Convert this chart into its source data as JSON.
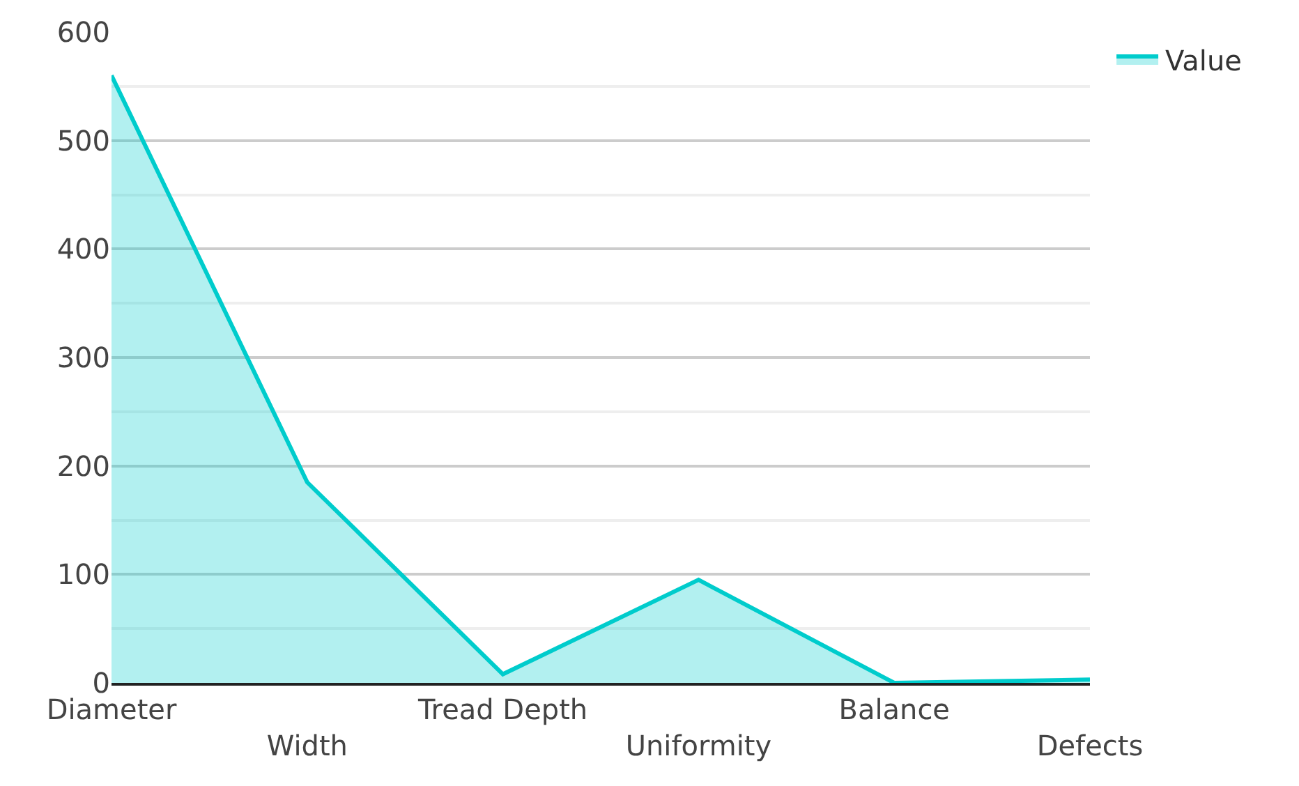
{
  "chart_data": {
    "type": "area",
    "categories": [
      "Diameter",
      "Width",
      "Tread Depth",
      "Uniformity",
      "Balance",
      "Defects"
    ],
    "series": [
      {
        "name": "Value",
        "color": "#00cccc",
        "values": [
          560,
          185,
          8,
          95,
          0,
          3
        ]
      }
    ],
    "ylim": [
      0,
      600
    ],
    "yticks": [
      0,
      100,
      200,
      300,
      400,
      500,
      600
    ],
    "grid": "y",
    "legend": "top right"
  }
}
